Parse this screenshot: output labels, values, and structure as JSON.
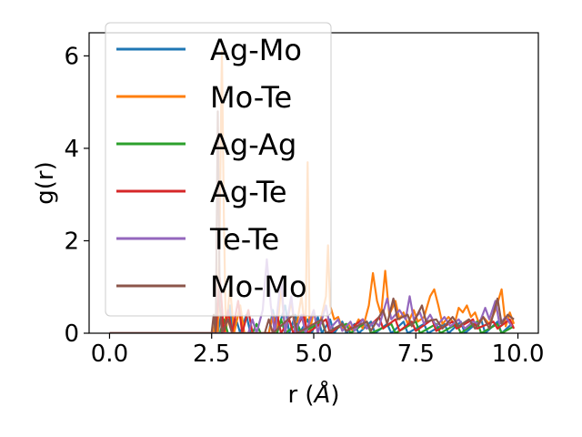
{
  "chart_data": {
    "type": "line",
    "xlabel": "r (",
    "xlabel_unit": "Å",
    "xlabel_close": ")",
    "ylabel": "g(r)",
    "xlim": [
      -0.5,
      10.5
    ],
    "ylim": [
      0,
      6.5
    ],
    "xticks": [
      0.0,
      2.5,
      5.0,
      7.5,
      10.0
    ],
    "xtick_labels": [
      "0.0",
      "2.5",
      "5.0",
      "7.5",
      "10.0"
    ],
    "yticks": [
      0,
      2,
      4,
      6
    ],
    "ytick_labels": [
      "0",
      "2",
      "4",
      "6"
    ],
    "grid": false,
    "legend_position": "upper-left",
    "series": [
      {
        "name": "Ag-Mo",
        "color": "#1f77b4",
        "points": [
          [
            0,
            0
          ],
          [
            2.55,
            0
          ],
          [
            2.6,
            0.3
          ],
          [
            2.65,
            0
          ],
          [
            2.75,
            0.5
          ],
          [
            2.8,
            0
          ],
          [
            2.95,
            0.6
          ],
          [
            3.0,
            0
          ],
          [
            3.1,
            0.3
          ],
          [
            3.2,
            0
          ],
          [
            3.35,
            0.4
          ],
          [
            3.45,
            0
          ],
          [
            3.9,
            0
          ],
          [
            4.0,
            0.5
          ],
          [
            4.1,
            0
          ],
          [
            4.3,
            0.6
          ],
          [
            4.4,
            0
          ],
          [
            4.55,
            0.4
          ],
          [
            4.65,
            0
          ],
          [
            4.85,
            0.3
          ],
          [
            4.95,
            0
          ],
          [
            5.1,
            0.35
          ],
          [
            5.2,
            0
          ],
          [
            5.4,
            0.3
          ],
          [
            5.5,
            0
          ],
          [
            5.7,
            0.25
          ],
          [
            5.8,
            0
          ],
          [
            6.0,
            0.2
          ],
          [
            6.1,
            0
          ],
          [
            6.4,
            0.25
          ],
          [
            6.5,
            0
          ],
          [
            6.8,
            0.2
          ],
          [
            6.9,
            0
          ],
          [
            7.2,
            0.25
          ],
          [
            7.3,
            0
          ],
          [
            7.7,
            0.2
          ],
          [
            7.8,
            0
          ],
          [
            8.2,
            0.2
          ],
          [
            8.3,
            0
          ],
          [
            8.6,
            0.25
          ],
          [
            8.7,
            0
          ],
          [
            9.1,
            0.3
          ],
          [
            9.2,
            0
          ],
          [
            9.5,
            0.25
          ],
          [
            9.6,
            0
          ],
          [
            9.85,
            0.2
          ]
        ]
      },
      {
        "name": "Mo-Te",
        "color": "#ff7f0e",
        "points": [
          [
            0,
            0
          ],
          [
            2.55,
            0
          ],
          [
            2.6,
            0.4
          ],
          [
            2.65,
            0
          ],
          [
            2.7,
            2.5
          ],
          [
            2.75,
            6.1
          ],
          [
            2.8,
            2.5
          ],
          [
            2.85,
            0
          ],
          [
            2.95,
            1.0
          ],
          [
            3.05,
            0
          ],
          [
            3.2,
            0.6
          ],
          [
            3.3,
            0
          ],
          [
            3.9,
            0
          ],
          [
            4.0,
            0.4
          ],
          [
            4.1,
            0
          ],
          [
            4.2,
            1.0
          ],
          [
            4.3,
            0
          ],
          [
            4.45,
            0.7
          ],
          [
            4.55,
            0
          ],
          [
            4.7,
            0.8
          ],
          [
            4.8,
            0
          ],
          [
            4.85,
            3.7
          ],
          [
            4.9,
            0
          ],
          [
            5.0,
            0.5
          ],
          [
            5.1,
            0
          ],
          [
            5.3,
            0.8
          ],
          [
            5.35,
            1.9
          ],
          [
            5.4,
            0.6
          ],
          [
            5.5,
            0.3
          ],
          [
            5.6,
            0.35
          ],
          [
            5.7,
            0.1
          ],
          [
            5.85,
            0.2
          ],
          [
            5.95,
            0.05
          ],
          [
            6.1,
            0.3
          ],
          [
            6.2,
            0.1
          ],
          [
            6.35,
            0.6
          ],
          [
            6.45,
            1.3
          ],
          [
            6.55,
            0.7
          ],
          [
            6.65,
            0.4
          ],
          [
            6.75,
            1.35
          ],
          [
            6.85,
            0.4
          ],
          [
            7.0,
            0.7
          ],
          [
            7.1,
            0.3
          ],
          [
            7.2,
            0.45
          ],
          [
            7.3,
            0.2
          ],
          [
            7.45,
            0.5
          ],
          [
            7.55,
            0.25
          ],
          [
            7.7,
            0.35
          ],
          [
            7.85,
            0.8
          ],
          [
            7.95,
            0.95
          ],
          [
            8.05,
            0.6
          ],
          [
            8.15,
            0.2
          ],
          [
            8.3,
            0.35
          ],
          [
            8.45,
            0.2
          ],
          [
            8.55,
            0.55
          ],
          [
            8.65,
            0.45
          ],
          [
            8.75,
            0.6
          ],
          [
            8.85,
            0.35
          ],
          [
            8.95,
            0.45
          ],
          [
            9.05,
            0.2
          ],
          [
            9.15,
            0.35
          ],
          [
            9.3,
            0.2
          ],
          [
            9.45,
            0.5
          ],
          [
            9.6,
            0.95
          ],
          [
            9.7,
            0.15
          ],
          [
            9.8,
            0.45
          ],
          [
            9.9,
            0.2
          ]
        ]
      },
      {
        "name": "Ag-Ag",
        "color": "#2ca02c",
        "points": [
          [
            0,
            0
          ],
          [
            2.7,
            0
          ],
          [
            2.8,
            0.3
          ],
          [
            2.9,
            0
          ],
          [
            3.5,
            0
          ],
          [
            3.6,
            0.2
          ],
          [
            3.7,
            0
          ],
          [
            4.1,
            0
          ],
          [
            4.2,
            0.3
          ],
          [
            4.3,
            0
          ],
          [
            4.6,
            0.2
          ],
          [
            4.7,
            0
          ],
          [
            5.2,
            0.25
          ],
          [
            5.3,
            0
          ],
          [
            5.8,
            0.2
          ],
          [
            5.9,
            0
          ],
          [
            6.3,
            0.25
          ],
          [
            6.4,
            0
          ],
          [
            6.9,
            0.2
          ],
          [
            7.0,
            0
          ],
          [
            7.5,
            0.25
          ],
          [
            7.6,
            0
          ],
          [
            8.0,
            0.2
          ],
          [
            8.1,
            0
          ],
          [
            8.5,
            0.2
          ],
          [
            8.6,
            0
          ],
          [
            9.0,
            0.25
          ],
          [
            9.1,
            0
          ],
          [
            9.5,
            0.2
          ],
          [
            9.6,
            0
          ],
          [
            9.9,
            0.15
          ]
        ]
      },
      {
        "name": "Ag-Te",
        "color": "#d62728",
        "points": [
          [
            0,
            0
          ],
          [
            2.6,
            0
          ],
          [
            2.7,
            1.2
          ],
          [
            2.8,
            0
          ],
          [
            2.9,
            0.5
          ],
          [
            3.0,
            0
          ],
          [
            3.15,
            0.7
          ],
          [
            3.25,
            0
          ],
          [
            3.4,
            0.5
          ],
          [
            3.5,
            0
          ],
          [
            4.0,
            0
          ],
          [
            4.1,
            0.4
          ],
          [
            4.2,
            0
          ],
          [
            4.4,
            0.3
          ],
          [
            4.5,
            0
          ],
          [
            4.75,
            0.4
          ],
          [
            4.85,
            0
          ],
          [
            5.3,
            0.3
          ],
          [
            5.4,
            0
          ],
          [
            5.7,
            0.2
          ],
          [
            5.8,
            0.05
          ],
          [
            6.2,
            0.3
          ],
          [
            6.3,
            0.1
          ],
          [
            6.6,
            0.35
          ],
          [
            6.7,
            0.1
          ],
          [
            7.0,
            0.3
          ],
          [
            7.1,
            0.05
          ],
          [
            7.4,
            0.25
          ],
          [
            7.5,
            0.05
          ],
          [
            7.9,
            0.3
          ],
          [
            8.0,
            0.05
          ],
          [
            8.4,
            0.25
          ],
          [
            8.5,
            0.1
          ],
          [
            8.9,
            0.3
          ],
          [
            9.0,
            0.1
          ],
          [
            9.4,
            0.25
          ],
          [
            9.5,
            0.1
          ],
          [
            9.8,
            0.3
          ],
          [
            9.9,
            0.1
          ]
        ]
      },
      {
        "name": "Te-Te",
        "color": "#9467bd",
        "points": [
          [
            0,
            0
          ],
          [
            3.4,
            0
          ],
          [
            3.5,
            0.3
          ],
          [
            3.6,
            0
          ],
          [
            3.75,
            0.5
          ],
          [
            3.85,
            1.6
          ],
          [
            3.95,
            0.6
          ],
          [
            4.05,
            0
          ],
          [
            4.2,
            1.2
          ],
          [
            4.3,
            0
          ],
          [
            4.45,
            0.8
          ],
          [
            4.55,
            0
          ],
          [
            4.7,
            0.4
          ],
          [
            4.8,
            0
          ],
          [
            5.0,
            0.5
          ],
          [
            5.1,
            0
          ],
          [
            5.3,
            0.6
          ],
          [
            5.4,
            0.1
          ],
          [
            5.6,
            0.3
          ],
          [
            5.7,
            0.05
          ],
          [
            5.9,
            0.25
          ],
          [
            6.0,
            0.05
          ],
          [
            6.2,
            0.3
          ],
          [
            6.3,
            0.1
          ],
          [
            6.5,
            0.25
          ],
          [
            6.6,
            0.15
          ],
          [
            6.8,
            0.75
          ],
          [
            6.9,
            0.3
          ],
          [
            7.1,
            0.5
          ],
          [
            7.25,
            0.3
          ],
          [
            7.35,
            0.8
          ],
          [
            7.45,
            0.3
          ],
          [
            7.6,
            0.45
          ],
          [
            7.7,
            0.2
          ],
          [
            7.85,
            0.4
          ],
          [
            8.0,
            0.15
          ],
          [
            8.2,
            0.35
          ],
          [
            8.35,
            0.15
          ],
          [
            8.55,
            0.3
          ],
          [
            8.7,
            0.1
          ],
          [
            8.9,
            0.25
          ],
          [
            9.05,
            0.2
          ],
          [
            9.2,
            0.55
          ],
          [
            9.3,
            0.3
          ],
          [
            9.45,
            0.7
          ],
          [
            9.55,
            0.2
          ],
          [
            9.7,
            0.35
          ],
          [
            9.85,
            0.15
          ]
        ]
      },
      {
        "name": "Mo-Mo",
        "color": "#8c564b",
        "points": [
          [
            0,
            0
          ],
          [
            2.5,
            0
          ],
          [
            2.55,
            0.4
          ],
          [
            2.6,
            0
          ],
          [
            2.65,
            4.8
          ],
          [
            2.7,
            0.6
          ],
          [
            2.75,
            0
          ],
          [
            2.9,
            0.3
          ],
          [
            3.0,
            0
          ],
          [
            3.8,
            0
          ],
          [
            3.9,
            0.3
          ],
          [
            4.0,
            0
          ],
          [
            4.5,
            0.4
          ],
          [
            4.6,
            0
          ],
          [
            5.2,
            0.3
          ],
          [
            5.3,
            0
          ],
          [
            5.7,
            0.2
          ],
          [
            5.8,
            0.05
          ],
          [
            6.3,
            0.25
          ],
          [
            6.4,
            0.05
          ],
          [
            6.7,
            0.5
          ],
          [
            6.8,
            0.2
          ],
          [
            6.95,
            0.75
          ],
          [
            7.05,
            0.3
          ],
          [
            7.3,
            0.4
          ],
          [
            7.4,
            0.15
          ],
          [
            7.65,
            0.6
          ],
          [
            7.75,
            0.25
          ],
          [
            8.0,
            0.3
          ],
          [
            8.15,
            0.1
          ],
          [
            8.4,
            0.35
          ],
          [
            8.55,
            0.15
          ],
          [
            8.8,
            0.3
          ],
          [
            8.95,
            0.1
          ],
          [
            9.15,
            0.35
          ],
          [
            9.3,
            0.1
          ],
          [
            9.5,
            0.75
          ],
          [
            9.6,
            0.2
          ],
          [
            9.75,
            0.4
          ],
          [
            9.9,
            0.3
          ]
        ]
      }
    ]
  }
}
